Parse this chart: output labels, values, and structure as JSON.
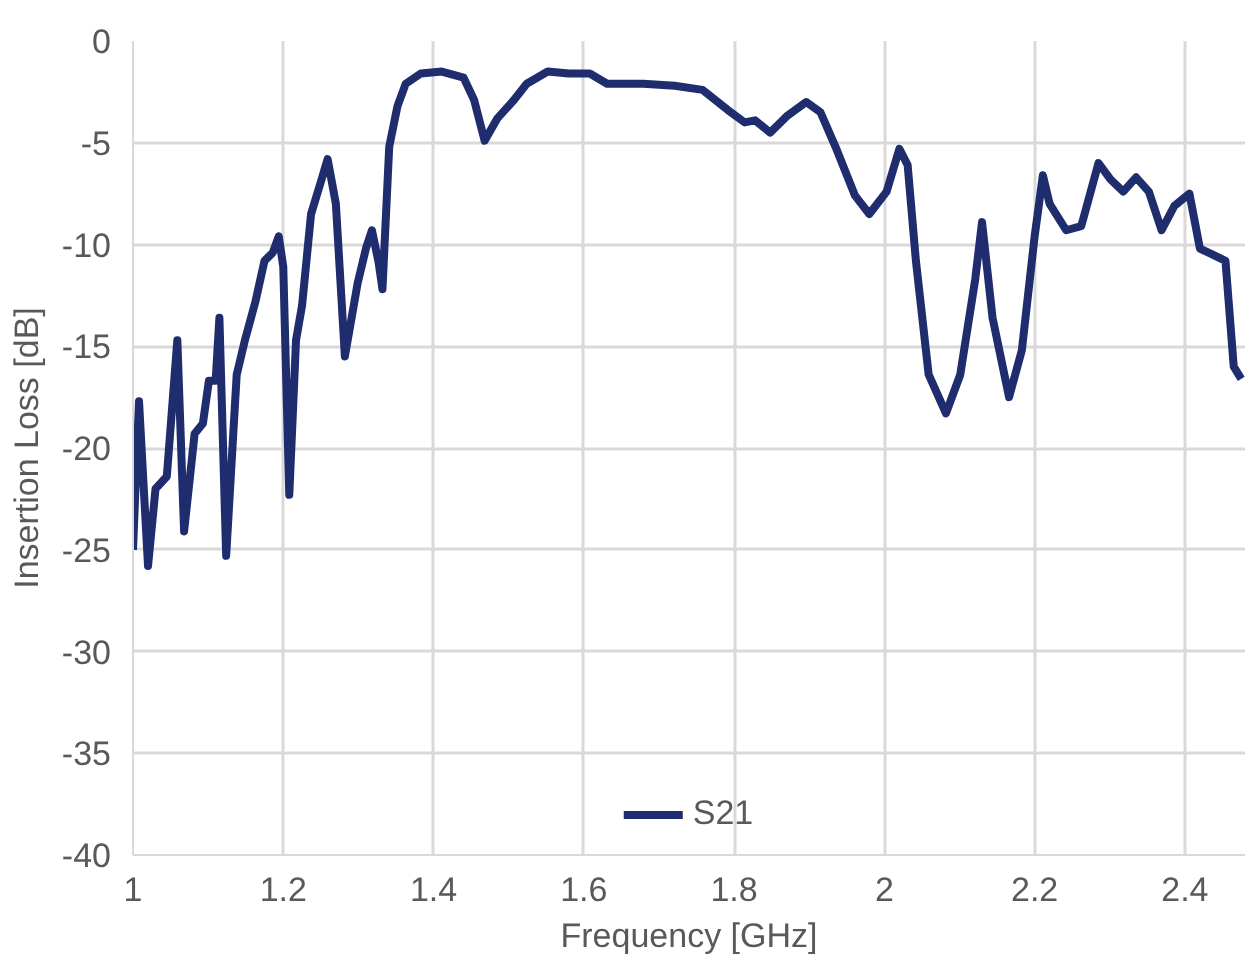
{
  "chart_data": {
    "type": "line",
    "xlabel": "Frequency [GHz]",
    "ylabel": "Insertion Loss [dB]",
    "xlim": [
      1,
      2.48
    ],
    "xticks": [
      1,
      {
        "value": 1.2,
        "label": "1.2"
      },
      {
        "value": 1.4,
        "label": "1.4"
      },
      {
        "value": 1.6,
        "label": "1.6"
      },
      {
        "value": 1.8,
        "label": "1.8"
      },
      2,
      {
        "value": 2.2,
        "label": "2.2"
      },
      {
        "value": 2.4,
        "label": "2.4"
      }
    ],
    "ylim": [
      -40,
      0
    ],
    "yticks": [
      -40,
      -35,
      -30,
      -25,
      -20,
      -15,
      -10,
      -5,
      0
    ],
    "grid": true,
    "legend": "bottom",
    "marker": "none",
    "line_style": "solid",
    "x": [
      1.0,
      1.008,
      1.02,
      1.03,
      1.045,
      1.059,
      1.068,
      1.082,
      1.093,
      1.101,
      1.11,
      1.115,
      1.124,
      1.138,
      1.149,
      1.163,
      1.175,
      1.186,
      1.194,
      1.2,
      1.208,
      1.217,
      1.225,
      1.237,
      1.251,
      1.259,
      1.27,
      1.282,
      1.299,
      1.31,
      1.318,
      1.327,
      1.332,
      1.341,
      1.352,
      1.363,
      1.383,
      1.411,
      1.44,
      1.454,
      1.468,
      1.485,
      1.507,
      1.524,
      1.552,
      1.58,
      1.608,
      1.631,
      1.651,
      1.679,
      1.721,
      1.758,
      1.792,
      1.814,
      1.828,
      1.848,
      1.87,
      1.896,
      1.915,
      1.935,
      1.961,
      1.98,
      2.003,
      2.02,
      2.031,
      2.042,
      2.059,
      2.082,
      2.101,
      2.121,
      2.13,
      2.144,
      2.166,
      2.183,
      2.2,
      2.211,
      2.22,
      2.242,
      2.262,
      2.285,
      2.301,
      2.318,
      2.335,
      2.352,
      2.369,
      2.386,
      2.406,
      2.42,
      2.437,
      2.454,
      2.465,
      2.475
    ],
    "series": [
      {
        "name": "S21",
        "color": "#1f2d6e",
        "values": [
          -25,
          -17.7,
          -25.8,
          -22,
          -21.4,
          -14.7,
          -24.1,
          -19.3,
          -18.8,
          -16.7,
          -16.7,
          -13.6,
          -25.3,
          -16.4,
          -14.7,
          -12.8,
          -10.8,
          -10.4,
          -9.6,
          -11.1,
          -22.3,
          -14.7,
          -13,
          -8.5,
          -6.8,
          -5.8,
          -8,
          -15.5,
          -11.9,
          -10.2,
          -9.3,
          -10.9,
          -12.2,
          -5.2,
          -3.2,
          -2.1,
          -1.6,
          -1.5,
          -1.8,
          -2.9,
          -4.9,
          -3.8,
          -2.9,
          -2.1,
          -1.5,
          -1.6,
          -1.6,
          -2.1,
          -2.1,
          -2.1,
          -2.2,
          -2.4,
          -3.4,
          -4.0,
          -3.9,
          -4.5,
          -3.7,
          -3.0,
          -3.5,
          -5.2,
          -7.6,
          -8.5,
          -7.4,
          -5.3,
          -6.1,
          -10.8,
          -16.4,
          -18.3,
          -16.4,
          -11.7,
          -8.9,
          -13.6,
          -17.5,
          -15.2,
          -9.6,
          -6.6,
          -8,
          -9.3,
          -9.1,
          -6,
          -6.8,
          -7.4,
          -6.7,
          -7.4,
          -9.3,
          -8.1,
          -7.5,
          -10.2,
          -10.5,
          -10.8,
          -16,
          -16.6
        ]
      }
    ]
  }
}
